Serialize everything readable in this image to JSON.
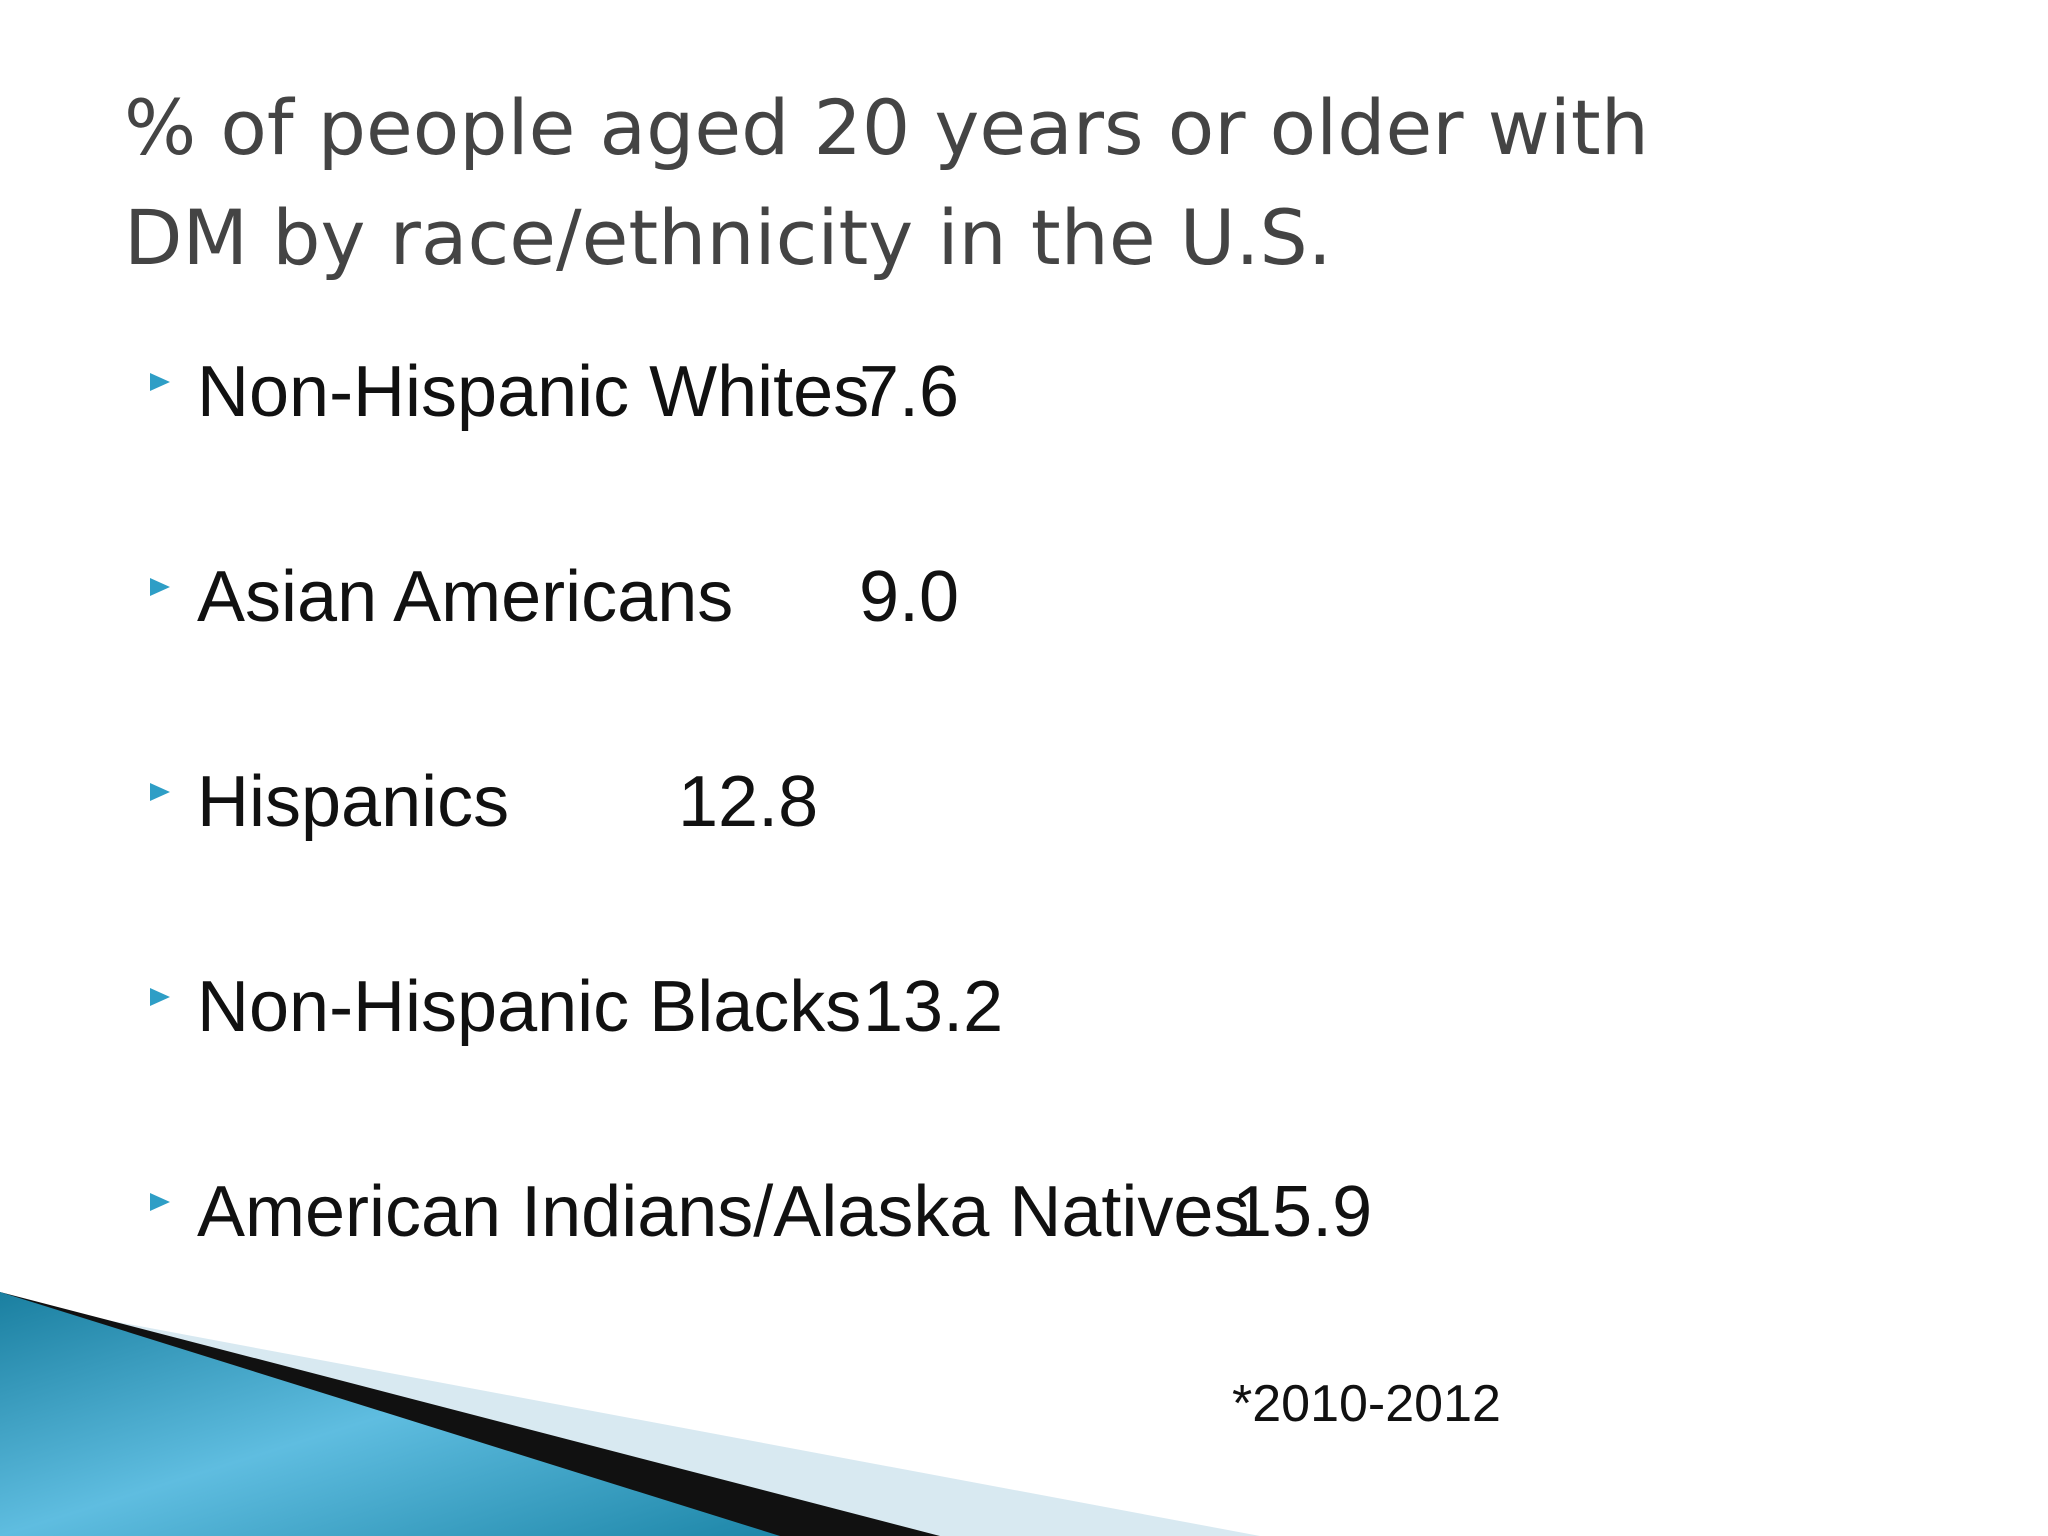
{
  "title": {
    "lines": [
      "% of people aged 20 years or older with",
      "DM by race/ethnicity in the U.S."
    ]
  },
  "bullets": [
    {
      "label": "Non-Hispanic Whites",
      "value": "7.6"
    },
    {
      "label": "Asian Americans",
      "value": "9.0"
    },
    {
      "label": "Hispanics",
      "value": "12.8"
    },
    {
      "label": "Non-Hispanic Blacks",
      "value": "13.2"
    },
    {
      "label": "American Indians/Alaska Natives",
      "value": "15.9"
    }
  ],
  "footnote": "*2010-2012"
}
